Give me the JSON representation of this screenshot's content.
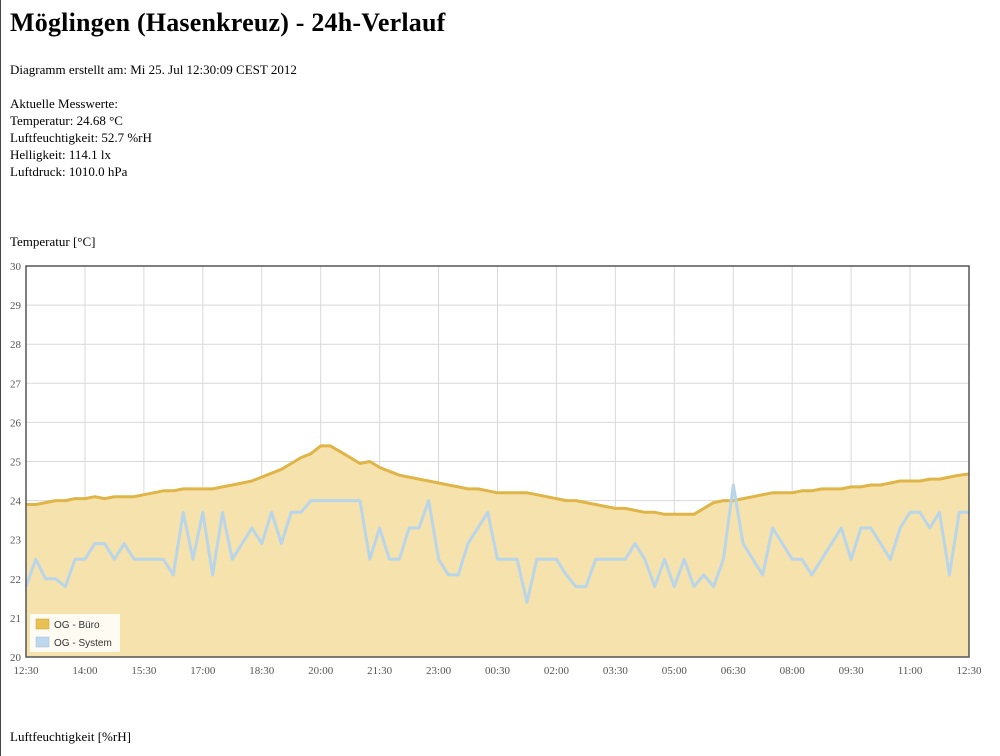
{
  "page": {
    "title": "Möglingen (Hasenkreuz) - 24h-Verlauf",
    "created": "Diagramm erstellt am: Mi 25. Jul 12:30:09 CEST 2012",
    "measures_heading": "Aktuelle Messwerte:",
    "measures": [
      "Temperatur: 24.68 °C",
      "Luftfeuchtigkeit: 52.7 %rH",
      "Helligkeit: 114.1 lx",
      "Luftdruck: 1010.0 hPa"
    ],
    "temp_chart_title": "Temperatur [°C]",
    "hum_chart_title": "Luftfeuchtigkeit [%rH]"
  },
  "colors": {
    "buero_line": "#e0b547",
    "buero_fill": "#f6e2ad",
    "system_line": "#b9d5ea",
    "legend_buero": "#e9c052",
    "legend_system": "#bdd7ee",
    "grid": "#d9d9d9",
    "frame": "#555555"
  },
  "chart_data": {
    "type": "area",
    "title": "Temperatur [°C]",
    "ylim": [
      20,
      30
    ],
    "yticks": [
      "20",
      "21",
      "22",
      "23",
      "24",
      "25",
      "26",
      "27",
      "28",
      "29",
      "30"
    ],
    "xticks": [
      "12:30",
      "14:00",
      "15:30",
      "17:00",
      "18:30",
      "20:00",
      "21:30",
      "23:00",
      "00:30",
      "02:00",
      "03:30",
      "05:00",
      "06:30",
      "08:00",
      "09:30",
      "11:00",
      "12:30"
    ],
    "grid": true,
    "legend_position": "bottom-left",
    "x": [
      "12:30",
      "12:45",
      "13:00",
      "13:15",
      "13:30",
      "13:45",
      "14:00",
      "14:15",
      "14:30",
      "14:45",
      "15:00",
      "15:15",
      "15:30",
      "15:45",
      "16:00",
      "16:15",
      "16:30",
      "16:45",
      "17:00",
      "17:15",
      "17:30",
      "17:45",
      "18:00",
      "18:15",
      "18:30",
      "18:45",
      "19:00",
      "19:15",
      "19:30",
      "19:45",
      "20:00",
      "20:15",
      "20:30",
      "20:45",
      "21:00",
      "21:15",
      "21:30",
      "21:45",
      "22:00",
      "22:15",
      "22:30",
      "22:45",
      "23:00",
      "23:15",
      "23:30",
      "23:45",
      "00:00",
      "00:15",
      "00:30",
      "00:45",
      "01:00",
      "01:15",
      "01:30",
      "01:45",
      "02:00",
      "02:15",
      "02:30",
      "02:45",
      "03:00",
      "03:15",
      "03:30",
      "03:45",
      "04:00",
      "04:15",
      "04:30",
      "04:45",
      "05:00",
      "05:15",
      "05:30",
      "05:45",
      "06:00",
      "06:15",
      "06:30",
      "06:45",
      "07:00",
      "07:15",
      "07:30",
      "07:45",
      "08:00",
      "08:15",
      "08:30",
      "08:45",
      "09:00",
      "09:15",
      "09:30",
      "09:45",
      "10:00",
      "10:15",
      "10:30",
      "10:45",
      "11:00",
      "11:15",
      "11:30",
      "11:45",
      "12:00",
      "12:15",
      "12:30"
    ],
    "series": [
      {
        "name": "OG - Büro",
        "style": "area",
        "values": [
          23.9,
          23.9,
          23.95,
          24.0,
          24.0,
          24.05,
          24.05,
          24.1,
          24.05,
          24.1,
          24.1,
          24.1,
          24.15,
          24.2,
          24.25,
          24.25,
          24.3,
          24.3,
          24.3,
          24.3,
          24.35,
          24.4,
          24.45,
          24.5,
          24.6,
          24.7,
          24.8,
          24.95,
          25.1,
          25.2,
          25.4,
          25.4,
          25.25,
          25.1,
          24.95,
          25.0,
          24.85,
          24.75,
          24.65,
          24.6,
          24.55,
          24.5,
          24.45,
          24.4,
          24.35,
          24.3,
          24.3,
          24.25,
          24.2,
          24.2,
          24.2,
          24.2,
          24.15,
          24.1,
          24.05,
          24.0,
          24.0,
          23.95,
          23.9,
          23.85,
          23.8,
          23.8,
          23.75,
          23.7,
          23.7,
          23.65,
          23.65,
          23.65,
          23.65,
          23.8,
          23.95,
          24.0,
          24.0,
          24.05,
          24.1,
          24.15,
          24.2,
          24.2,
          24.2,
          24.25,
          24.25,
          24.3,
          24.3,
          24.3,
          24.35,
          24.35,
          24.4,
          24.4,
          24.45,
          24.5,
          24.5,
          24.5,
          24.55,
          24.55,
          24.6,
          24.65,
          24.68
        ]
      },
      {
        "name": "OG - System",
        "style": "line",
        "values": [
          21.8,
          22.5,
          22.0,
          22.0,
          21.8,
          22.5,
          22.5,
          22.9,
          22.9,
          22.5,
          22.9,
          22.5,
          22.5,
          22.5,
          22.5,
          22.1,
          23.7,
          22.5,
          23.7,
          22.1,
          23.7,
          22.5,
          22.9,
          23.3,
          22.9,
          23.7,
          22.9,
          23.7,
          23.7,
          24.0,
          24.0,
          24.0,
          24.0,
          24.0,
          24.0,
          22.5,
          23.3,
          22.5,
          22.5,
          23.3,
          23.3,
          24.0,
          22.5,
          22.1,
          22.1,
          22.9,
          23.3,
          23.7,
          22.5,
          22.5,
          22.5,
          21.4,
          22.5,
          22.5,
          22.5,
          22.1,
          21.8,
          21.8,
          22.5,
          22.5,
          22.5,
          22.5,
          22.9,
          22.5,
          21.8,
          22.5,
          21.8,
          22.5,
          21.8,
          22.1,
          21.8,
          22.5,
          24.4,
          22.9,
          22.5,
          22.1,
          23.3,
          22.9,
          22.5,
          22.5,
          22.1,
          22.5,
          22.9,
          23.3,
          22.5,
          23.3,
          23.3,
          22.9,
          22.5,
          23.3,
          23.7,
          23.7,
          23.3,
          23.7,
          22.1,
          23.7,
          23.7
        ]
      }
    ]
  }
}
